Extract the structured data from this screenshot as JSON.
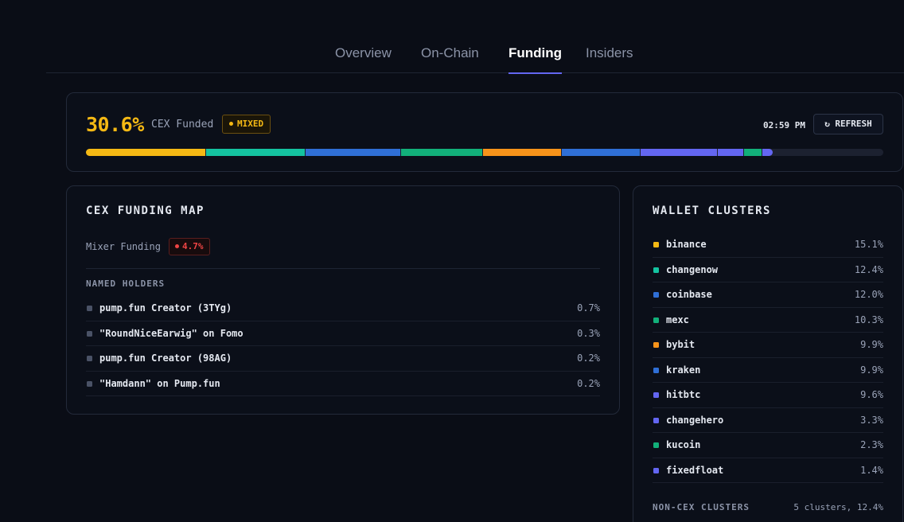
{
  "tabs": [
    {
      "label": "Overview",
      "active": false
    },
    {
      "label": "On-Chain",
      "active": false
    },
    {
      "label": "Funding",
      "active": true
    },
    {
      "label": "Insiders",
      "active": false
    }
  ],
  "summary": {
    "percent": "30.6%",
    "label": "CEX Funded",
    "badge": "MIXED",
    "time": "02:59 PM",
    "refresh_label": "↻ REFRESH",
    "segments": [
      {
        "name": "binance",
        "value": 15.1,
        "color": "#f5b914"
      },
      {
        "name": "changenow",
        "value": 12.4,
        "color": "#14c3a0"
      },
      {
        "name": "coinbase",
        "value": 12.0,
        "color": "#2f6fd6"
      },
      {
        "name": "mexc",
        "value": 10.3,
        "color": "#12b07a"
      },
      {
        "name": "bybit",
        "value": 9.9,
        "color": "#f7931a"
      },
      {
        "name": "kraken",
        "value": 9.9,
        "color": "#2f6fd6"
      },
      {
        "name": "hitbtc",
        "value": 9.6,
        "color": "#6366f1"
      },
      {
        "name": "changehero",
        "value": 3.3,
        "color": "#6366f1"
      },
      {
        "name": "kucoin",
        "value": 2.3,
        "color": "#12b07a"
      },
      {
        "name": "fixedfloat",
        "value": 1.4,
        "color": "#6366f1"
      }
    ]
  },
  "cex_map": {
    "title": "CEX FUNDING MAP",
    "mixer_label": "Mixer Funding",
    "mixer_value": "4.7%",
    "named_holders_title": "NAMED HOLDERS",
    "holders": [
      {
        "name": "pump.fun Creator (3TYg)",
        "value": "0.7%"
      },
      {
        "name": "\"RoundNiceEarwig\" on Fomo",
        "value": "0.3%"
      },
      {
        "name": "pump.fun Creator (98AG)",
        "value": "0.2%"
      },
      {
        "name": "\"Hamdann\" on Pump.fun",
        "value": "0.2%"
      }
    ]
  },
  "clusters": {
    "title": "WALLET CLUSTERS",
    "items": [
      {
        "name": "binance",
        "value": "15.1%",
        "color": "#f5b914"
      },
      {
        "name": "changenow",
        "value": "12.4%",
        "color": "#14c3a0"
      },
      {
        "name": "coinbase",
        "value": "12.0%",
        "color": "#2f6fd6"
      },
      {
        "name": "mexc",
        "value": "10.3%",
        "color": "#12b07a"
      },
      {
        "name": "bybit",
        "value": "9.9%",
        "color": "#f7931a"
      },
      {
        "name": "kraken",
        "value": "9.9%",
        "color": "#2f6fd6"
      },
      {
        "name": "hitbtc",
        "value": "9.6%",
        "color": "#6366f1"
      },
      {
        "name": "changehero",
        "value": "3.3%",
        "color": "#6366f1"
      },
      {
        "name": "kucoin",
        "value": "2.3%",
        "color": "#12b07a"
      },
      {
        "name": "fixedfloat",
        "value": "1.4%",
        "color": "#6366f1"
      }
    ],
    "non_cex_label": "NON-CEX CLUSTERS",
    "non_cex_value": "5 clusters, 12.4%"
  },
  "colors": {
    "holder_square": "#4a5266",
    "accent": "#6366f1"
  }
}
